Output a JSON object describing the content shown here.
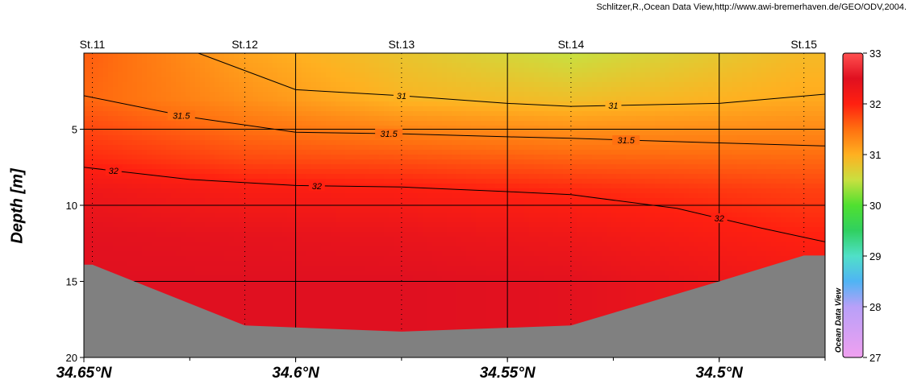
{
  "credit": "Schlitzer,R.,Ocean Data View,http://www.awi-bremerhaven.de/GEO/ODV,2004.",
  "watermark": "Ocean Data View",
  "chart_data": {
    "type": "heatmap",
    "title": "",
    "xlabel": "",
    "ylabel": "Depth [m]",
    "x_axis": {
      "reversed": true,
      "range": [
        34.65,
        34.475
      ],
      "ticks": [
        34.65,
        34.6,
        34.55,
        34.5
      ],
      "tick_labels": [
        "34.65°N",
        "34.6°N",
        "34.55°N",
        "34.5°N"
      ]
    },
    "y_axis": {
      "reversed": true,
      "range": [
        0,
        20
      ],
      "ticks": [
        5,
        10,
        15,
        20
      ],
      "tick_labels": [
        "5",
        "10",
        "15",
        "20"
      ]
    },
    "stations": [
      {
        "name": "St.11",
        "lat": 34.648
      },
      {
        "name": "St.12",
        "lat": 34.612
      },
      {
        "name": "St.13",
        "lat": 34.575
      },
      {
        "name": "St.14",
        "lat": 34.535
      },
      {
        "name": "St.15",
        "lat": 34.48
      }
    ],
    "colorbar": {
      "min": 27,
      "max": 33,
      "ticks": [
        27,
        28,
        29,
        30,
        31,
        32,
        33
      ],
      "tick_labels": [
        "27",
        "28",
        "29",
        "30",
        "31",
        "32",
        "33"
      ]
    },
    "contour_levels": [
      31,
      31.5,
      32
    ],
    "contours": [
      {
        "level": 31,
        "label": "31",
        "points": [
          [
            34.623,
            0
          ],
          [
            34.6,
            2.4
          ],
          [
            34.575,
            2.8
          ],
          [
            34.55,
            3.3
          ],
          [
            34.535,
            3.5
          ],
          [
            34.5,
            3.3
          ],
          [
            34.475,
            2.7
          ]
        ],
        "labels_at": [
          34.575,
          34.525
        ]
      },
      {
        "level": 31.5,
        "label": "31.5",
        "points": [
          [
            34.65,
            2.8
          ],
          [
            34.625,
            4.2
          ],
          [
            34.6,
            5.2
          ],
          [
            34.575,
            5.3
          ],
          [
            34.55,
            5.5
          ],
          [
            34.535,
            5.6
          ],
          [
            34.5,
            5.9
          ],
          [
            34.475,
            6.1
          ]
        ],
        "labels_at": [
          34.627,
          34.578,
          34.522
        ]
      },
      {
        "level": 32,
        "label": "32",
        "points": [
          [
            34.65,
            7.5
          ],
          [
            34.625,
            8.3
          ],
          [
            34.6,
            8.7
          ],
          [
            34.575,
            8.8
          ],
          [
            34.55,
            9.1
          ],
          [
            34.535,
            9.3
          ],
          [
            34.51,
            10.2
          ],
          [
            34.49,
            11.5
          ],
          [
            34.475,
            12.4
          ]
        ],
        "labels_at": [
          34.643,
          34.595,
          34.5
        ]
      }
    ],
    "field": [
      {
        "depth": 0,
        "values": [
          31.6,
          31.1,
          30.8,
          30.5,
          30.9
        ]
      },
      {
        "depth": 3,
        "values": [
          31.55,
          31.25,
          30.95,
          30.85,
          31.05
        ]
      },
      {
        "depth": 5,
        "values": [
          31.75,
          31.5,
          31.35,
          31.25,
          31.3
        ]
      },
      {
        "depth": 7,
        "values": [
          31.95,
          31.75,
          31.7,
          31.6,
          31.55
        ]
      },
      {
        "depth": 9,
        "values": [
          32.25,
          32.1,
          32.05,
          31.95,
          31.8
        ]
      },
      {
        "depth": 12,
        "values": [
          32.45,
          32.4,
          32.35,
          32.25,
          32.0
        ]
      },
      {
        "depth": 15,
        "values": [
          32.5,
          32.5,
          32.5,
          32.45,
          32.2
        ]
      },
      {
        "depth": 20,
        "values": [
          32.5,
          32.5,
          32.5,
          32.45,
          32.2
        ]
      }
    ],
    "bottom_depth": [
      {
        "lat": 34.648,
        "depth": 13.9
      },
      {
        "lat": 34.612,
        "depth": 17.9
      },
      {
        "lat": 34.575,
        "depth": 18.3
      },
      {
        "lat": 34.535,
        "depth": 17.9
      },
      {
        "lat": 34.5,
        "depth": 15.0
      },
      {
        "lat": 34.48,
        "depth": 13.3
      }
    ],
    "grid": true,
    "colors": {
      "seafloor": "#808080",
      "contour": "#000000"
    }
  }
}
